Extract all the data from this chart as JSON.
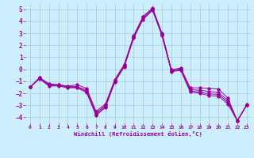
{
  "x": [
    0,
    1,
    2,
    3,
    4,
    5,
    6,
    7,
    8,
    9,
    10,
    11,
    12,
    13,
    14,
    15,
    16,
    17,
    18,
    19,
    20,
    21,
    22,
    23
  ],
  "line1": [
    -1.5,
    -0.7,
    -1.2,
    -1.3,
    -1.4,
    -1.3,
    -1.6,
    -3.5,
    -2.9,
    -0.85,
    0.4,
    2.8,
    4.4,
    5.1,
    3.0,
    -0.05,
    0.1,
    -1.55,
    -1.55,
    -1.6,
    -1.65,
    -2.4,
    -4.3,
    -2.95
  ],
  "line2": [
    -1.5,
    -0.7,
    -1.3,
    -1.3,
    -1.45,
    -1.45,
    -1.75,
    -3.65,
    -3.0,
    -0.95,
    0.35,
    2.75,
    4.35,
    5.05,
    2.95,
    -0.1,
    0.05,
    -1.7,
    -1.75,
    -1.85,
    -1.95,
    -2.6,
    -4.3,
    -2.97
  ],
  "line3": [
    -1.5,
    -0.75,
    -1.35,
    -1.35,
    -1.5,
    -1.5,
    -1.85,
    -3.75,
    -3.1,
    -1.0,
    0.25,
    2.65,
    4.25,
    4.95,
    2.85,
    -0.15,
    -0.05,
    -1.8,
    -1.9,
    -2.05,
    -2.1,
    -2.75,
    -4.3,
    -2.99
  ],
  "line4": [
    -1.5,
    -0.8,
    -1.4,
    -1.4,
    -1.55,
    -1.55,
    -1.95,
    -3.85,
    -3.2,
    -1.05,
    0.2,
    2.6,
    4.15,
    4.9,
    2.8,
    -0.2,
    -0.1,
    -1.9,
    -2.0,
    -2.2,
    -2.25,
    -2.9,
    -4.3,
    -3.0
  ],
  "line_color": "#990099",
  "bg_color": "#cceeff",
  "grid_color": "#aacccc",
  "xlabel": "Windchill (Refroidissement éolien,°C)",
  "xlabel_color": "#990099",
  "tick_color": "#990099",
  "ylim": [
    -4.5,
    5.5
  ],
  "xlim": [
    -0.5,
    23.5
  ],
  "yticks": [
    -4,
    -3,
    -2,
    -1,
    0,
    1,
    2,
    3,
    4,
    5
  ],
  "xticks": [
    0,
    1,
    2,
    3,
    4,
    5,
    6,
    7,
    8,
    9,
    10,
    11,
    12,
    13,
    14,
    15,
    16,
    17,
    18,
    19,
    20,
    21,
    22,
    23
  ]
}
